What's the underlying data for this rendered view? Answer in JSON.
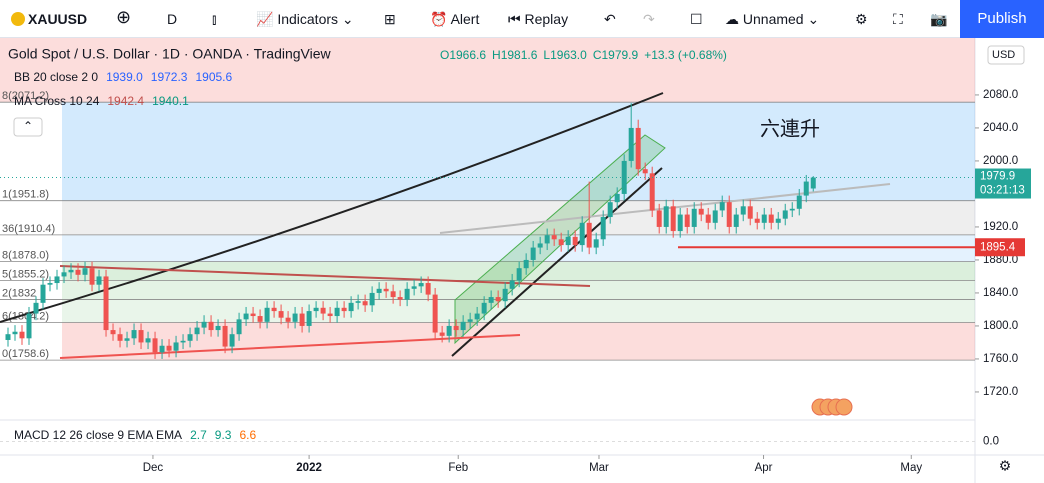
{
  "toolbar": {
    "symbol": "XAUUSD",
    "interval": "D",
    "indicators": "Indicators",
    "alert": "Alert",
    "replay": "Replay",
    "layout": "Unnamed",
    "publish": "Publish"
  },
  "chart_data": {
    "type": "candlestick",
    "title": "Gold Spot / U.S. Dollar · 1D · OANDA · TradingView",
    "ohlc_legend": [
      "O1966.6",
      "H1981.6",
      "L1963.0",
      "C1979.9",
      "+13.3 (+0.68%)"
    ],
    "indicators": [
      {
        "name": "BB 20 close 2 0",
        "values": [
          "1939.0",
          "1972.3",
          "1905.6"
        ]
      },
      {
        "name": "MA Cross 10 24",
        "values": [
          "1942.4",
          "1940.1"
        ]
      }
    ],
    "macd": {
      "name": "MACD 12 26 close 9 EMA EMA",
      "values": [
        "2.7",
        "9.3",
        "6.6"
      ],
      "ylim": [
        -25,
        40
      ],
      "yticks": [
        {
          "value": 0,
          "label": "0.0"
        }
      ]
    },
    "annotation": "六連升",
    "currency": "USD",
    "colors": {
      "up": "#26a69a",
      "down": "#ef5350"
    },
    "open": [
      1783,
      1790,
      1793,
      1785,
      1815,
      1828,
      1850,
      1852,
      1860,
      1865,
      1868,
      1862,
      1870,
      1850,
      1860,
      1795,
      1790,
      1782,
      1785,
      1795,
      1780,
      1785,
      1768,
      1776,
      1770,
      1780,
      1782,
      1790,
      1798,
      1805,
      1795,
      1800,
      1775,
      1790,
      1808,
      1815,
      1812,
      1805,
      1822,
      1818,
      1810,
      1805,
      1815,
      1800,
      1818,
      1822,
      1815,
      1812,
      1822,
      1818,
      1828,
      1830,
      1825,
      1840,
      1845,
      1842,
      1835,
      1832,
      1845,
      1848,
      1852,
      1838,
      1792,
      1788,
      1800,
      1795,
      1805,
      1808,
      1815,
      1828,
      1835,
      1830,
      1845,
      1855,
      1870,
      1880,
      1895,
      1900,
      1910,
      1905,
      1898,
      1908,
      1898,
      1925,
      1895,
      1905,
      1932,
      1950,
      1960,
      2000,
      2040,
      1990,
      1985,
      1940,
      1920,
      1945,
      1915,
      1935,
      1920,
      1942,
      1935,
      1925,
      1940,
      1950,
      1920,
      1935,
      1945,
      1930,
      1925,
      1935,
      1925,
      1930,
      1940,
      1942,
      1958,
      1966.6
    ],
    "high": [
      1798,
      1801,
      1801,
      1823,
      1836,
      1858,
      1860,
      1868,
      1873,
      1876,
      1876,
      1878,
      1878,
      1868,
      1868,
      1803,
      1798,
      1793,
      1803,
      1803,
      1793,
      1793,
      1784,
      1784,
      1788,
      1790,
      1798,
      1806,
      1813,
      1813,
      1808,
      1808,
      1798,
      1816,
      1823,
      1823,
      1820,
      1830,
      1830,
      1826,
      1818,
      1823,
      1823,
      1826,
      1830,
      1830,
      1823,
      1830,
      1830,
      1836,
      1838,
      1838,
      1848,
      1853,
      1853,
      1850,
      1843,
      1853,
      1856,
      1860,
      1860,
      1846,
      1800,
      1808,
      1808,
      1813,
      1816,
      1823,
      1836,
      1843,
      1843,
      1853,
      1863,
      1878,
      1888,
      1903,
      1908,
      1918,
      1918,
      1913,
      1916,
      1916,
      1933,
      1975,
      1913,
      1940,
      1958,
      1968,
      2008,
      2070,
      2050,
      1998,
      1993,
      1948,
      1953,
      1953,
      1943,
      1943,
      1950,
      1950,
      1943,
      1948,
      1958,
      1958,
      1943,
      1953,
      1953,
      1938,
      1943,
      1943,
      1938,
      1948,
      1950,
      1966,
      1983,
      1981.6
    ],
    "low": [
      1775,
      1782,
      1777,
      1777,
      1807,
      1820,
      1842,
      1844,
      1852,
      1857,
      1854,
      1854,
      1842,
      1842,
      1787,
      1782,
      1774,
      1774,
      1777,
      1772,
      1772,
      1760,
      1760,
      1762,
      1762,
      1772,
      1774,
      1782,
      1790,
      1787,
      1787,
      1767,
      1767,
      1782,
      1800,
      1804,
      1797,
      1797,
      1810,
      1802,
      1797,
      1797,
      1792,
      1792,
      1810,
      1807,
      1804,
      1804,
      1810,
      1810,
      1820,
      1817,
      1817,
      1832,
      1834,
      1827,
      1824,
      1824,
      1837,
      1840,
      1830,
      1784,
      1780,
      1780,
      1787,
      1787,
      1797,
      1800,
      1807,
      1820,
      1822,
      1822,
      1837,
      1847,
      1862,
      1872,
      1887,
      1892,
      1897,
      1890,
      1890,
      1890,
      1890,
      1887,
      1887,
      1897,
      1924,
      1942,
      1952,
      1992,
      1982,
      1977,
      1932,
      1912,
      1912,
      1907,
      1907,
      1912,
      1912,
      1927,
      1917,
      1917,
      1932,
      1912,
      1912,
      1927,
      1922,
      1917,
      1917,
      1917,
      1917,
      1922,
      1932,
      1934,
      1950,
      1963
    ],
    "close": [
      1790,
      1793,
      1785,
      1815,
      1828,
      1850,
      1852,
      1860,
      1865,
      1868,
      1862,
      1870,
      1850,
      1860,
      1795,
      1790,
      1782,
      1785,
      1795,
      1780,
      1785,
      1768,
      1776,
      1770,
      1780,
      1782,
      1790,
      1798,
      1805,
      1795,
      1800,
      1775,
      1790,
      1808,
      1815,
      1812,
      1805,
      1822,
      1818,
      1810,
      1805,
      1815,
      1800,
      1818,
      1822,
      1815,
      1812,
      1822,
      1818,
      1828,
      1830,
      1825,
      1840,
      1845,
      1842,
      1835,
      1832,
      1845,
      1848,
      1852,
      1838,
      1792,
      1788,
      1800,
      1795,
      1805,
      1808,
      1815,
      1828,
      1835,
      1830,
      1845,
      1855,
      1870,
      1880,
      1895,
      1900,
      1910,
      1905,
      1898,
      1908,
      1898,
      1925,
      1895,
      1905,
      1932,
      1950,
      1960,
      2000,
      2040,
      1990,
      1985,
      1940,
      1920,
      1945,
      1915,
      1935,
      1920,
      1942,
      1935,
      1925,
      1940,
      1950,
      1920,
      1935,
      1945,
      1930,
      1925,
      1935,
      1925,
      1930,
      1940,
      1942,
      1958,
      1975,
      1979.9
    ],
    "xlim": [
      0,
      138.1
    ],
    "xticks": [
      {
        "value": 20.7,
        "label": "Dec"
      },
      {
        "value": 43,
        "label": "2022"
      },
      {
        "value": 64.3,
        "label": "Feb"
      },
      {
        "value": 84.4,
        "label": "Mar"
      },
      {
        "value": 107.9,
        "label": "Apr"
      },
      {
        "value": 129,
        "label": "May"
      }
    ],
    "ylim": [
      1686,
      2149
    ],
    "yticks": [
      {
        "value": 1720,
        "label": "1720.0"
      },
      {
        "value": 1760,
        "label": "1760.0"
      },
      {
        "value": 1800,
        "label": "1800.0"
      },
      {
        "value": 1840,
        "label": "1840.0"
      },
      {
        "value": 1880,
        "label": "1880.0"
      },
      {
        "value": 1920,
        "label": "1920.0"
      },
      {
        "value": 2000,
        "label": "2000.0"
      },
      {
        "value": 2040,
        "label": "2040.0"
      },
      {
        "value": 2080,
        "label": "2080.0"
      }
    ],
    "last_price": {
      "value": 1979.9,
      "label": "1979.9",
      "countdown": "03:21:13"
    },
    "alert_line": {
      "value": 1895.4,
      "label": "1895.4"
    },
    "levels": [
      {
        "value": 2071.2,
        "label": "8(2071.2)"
      },
      {
        "value": 1951.8,
        "label": "1(1951.8)"
      },
      {
        "value": 1910.4,
        "label": "36(1910.4)"
      },
      {
        "value": 1878.0,
        "label": "8(1878.0)"
      },
      {
        "value": 1855.2,
        "label": "5(1855.2)"
      },
      {
        "value": 1832,
        "label": "2(1832"
      },
      {
        "value": 1804.2,
        "label": "6(1804.2)"
      },
      {
        "value": 1758.6,
        "label": "0(1758.6)"
      }
    ]
  }
}
